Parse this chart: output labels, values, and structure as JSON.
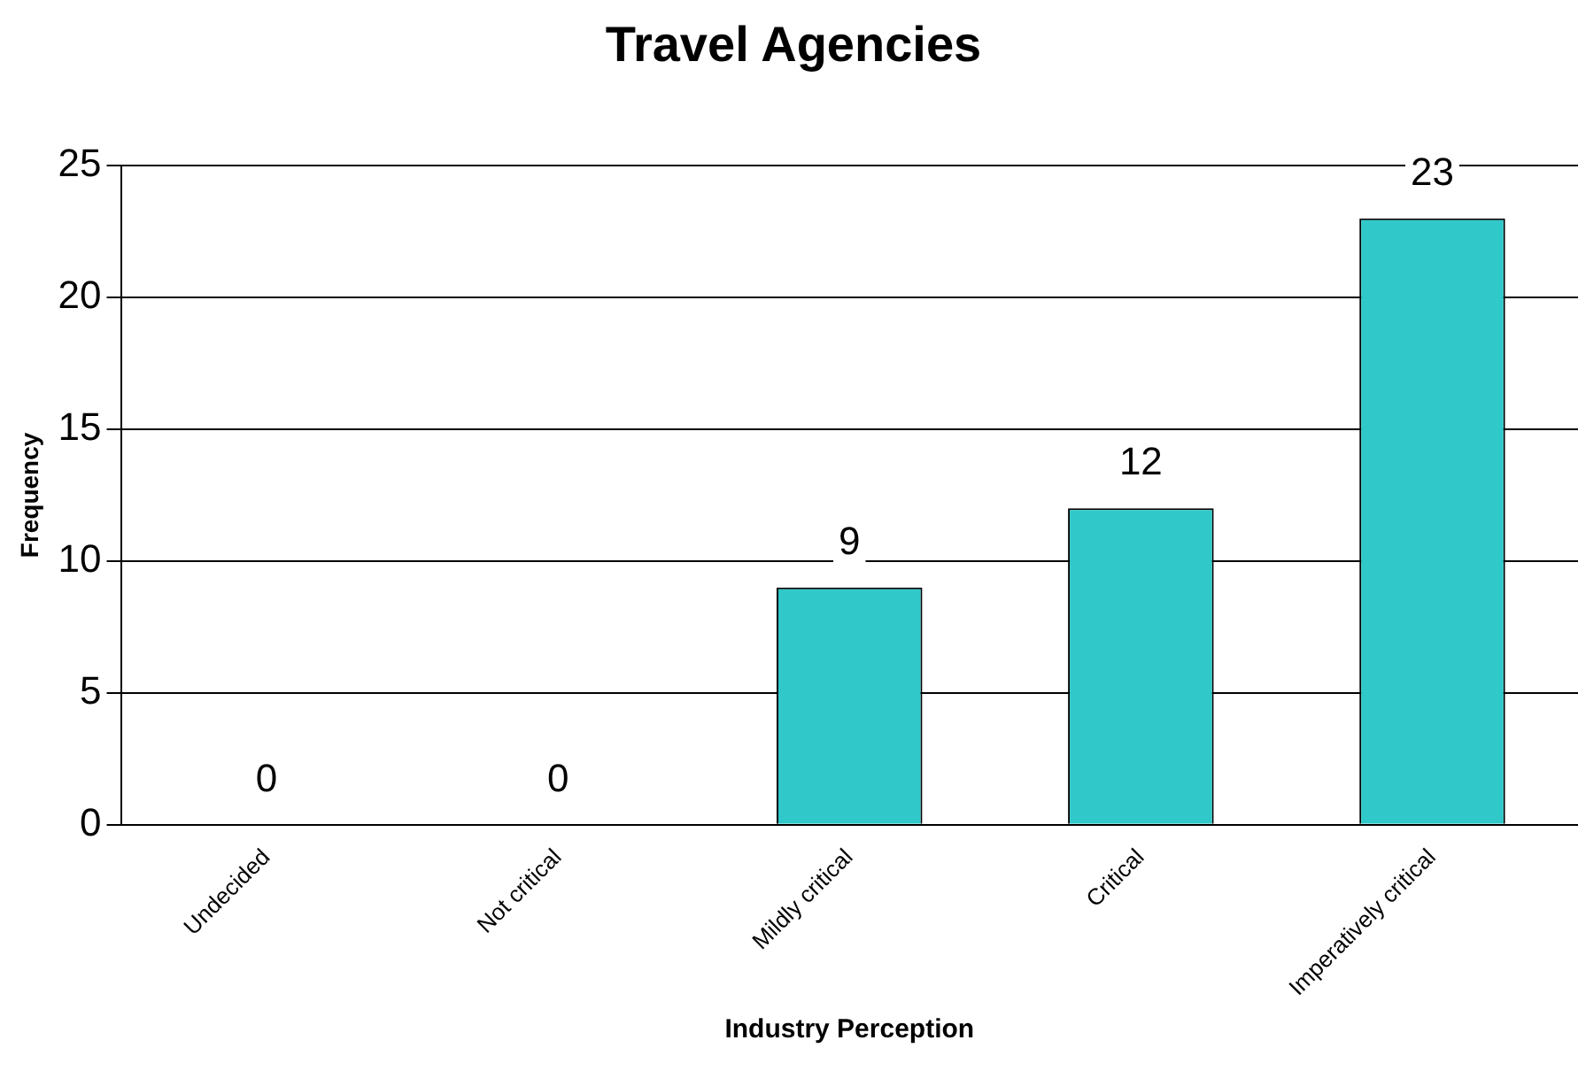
{
  "chart_data": {
    "type": "bar",
    "title": "Travel Agencies",
    "xlabel": "Industry Perception",
    "ylabel": "Frequency",
    "categories": [
      "Undecided",
      "Not critical",
      "Mildly critical",
      "Critical",
      "Imperatively critical"
    ],
    "values": [
      0,
      0,
      9,
      12,
      23
    ],
    "color": "#30c8c8",
    "ylim": [
      0,
      25
    ],
    "yticks": [
      0,
      5,
      10,
      15,
      20,
      25
    ],
    "grid": "y",
    "data_labels": true,
    "legend": false
  }
}
